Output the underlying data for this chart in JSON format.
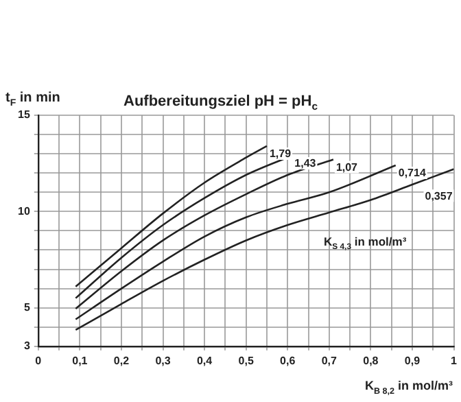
{
  "chart_data": {
    "type": "line",
    "title": "Aufbereitungsziel pH = pH$_{c}$",
    "xlabel": "K$_{B 8,2}$ in mol/m³",
    "ylabel": "t$_{F}$ in min",
    "legend_title": "K$_{S 4,3}$ in mol/m³",
    "xlim": [
      0,
      1
    ],
    "ylim": [
      3,
      15
    ],
    "xticks": [
      {
        "value": 0,
        "label": "0"
      },
      {
        "value": 0.05,
        "label": null
      },
      {
        "value": 0.1,
        "label": "0,1"
      },
      {
        "value": 0.15,
        "label": null
      },
      {
        "value": 0.2,
        "label": "0,2"
      },
      {
        "value": 0.25,
        "label": null
      },
      {
        "value": 0.3,
        "label": "0,3"
      },
      {
        "value": 0.35,
        "label": null
      },
      {
        "value": 0.4,
        "label": "0,4"
      },
      {
        "value": 0.45,
        "label": null
      },
      {
        "value": 0.5,
        "label": "0,5"
      },
      {
        "value": 0.55,
        "label": null
      },
      {
        "value": 0.6,
        "label": "0,6"
      },
      {
        "value": 0.65,
        "label": null
      },
      {
        "value": 0.7,
        "label": "0,7"
      },
      {
        "value": 0.75,
        "label": null
      },
      {
        "value": 0.8,
        "label": "0,8"
      },
      {
        "value": 0.85,
        "label": null
      },
      {
        "value": 0.9,
        "label": "0,9"
      },
      {
        "value": 0.95,
        "label": null
      },
      {
        "value": 1,
        "label": "1"
      }
    ],
    "yticks": [
      3,
      {
        "value": 4,
        "label": null
      },
      5,
      {
        "value": 6,
        "label": null
      },
      {
        "value": 7,
        "label": null
      },
      {
        "value": 8,
        "label": null
      },
      {
        "value": 9,
        "label": null
      },
      10,
      {
        "value": 11,
        "label": null
      },
      {
        "value": 12,
        "label": null
      },
      {
        "value": 13,
        "label": null
      },
      {
        "value": 14,
        "label": null
      },
      15
    ],
    "grid": true,
    "marker": "none",
    "line_style": "solid",
    "series": [
      {
        "name": "1,79",
        "color": "#222222",
        "x": [
          0.09,
          0.2,
          0.3,
          0.4,
          0.5,
          0.55
        ],
        "values": [
          6.1,
          8.1,
          9.9,
          11.5,
          12.8,
          13.4
        ]
      },
      {
        "name": "1,43",
        "color": "#222222",
        "x": [
          0.09,
          0.2,
          0.3,
          0.4,
          0.5,
          0.61
        ],
        "values": [
          5.5,
          7.6,
          9.3,
          10.7,
          11.9,
          12.9
        ]
      },
      {
        "name": "1,07",
        "color": "#222222",
        "x": [
          0.09,
          0.2,
          0.3,
          0.4,
          0.5,
          0.6,
          0.71
        ],
        "values": [
          4.95,
          6.9,
          8.5,
          9.8,
          10.9,
          11.9,
          12.7
        ]
      },
      {
        "name": "0,714",
        "color": "#222222",
        "x": [
          0.09,
          0.2,
          0.3,
          0.4,
          0.5,
          0.6,
          0.7,
          0.86
        ],
        "values": [
          4.4,
          6.0,
          7.4,
          8.7,
          9.7,
          10.4,
          11.0,
          12.4
        ]
      },
      {
        "name": "0,357",
        "color": "#222222",
        "x": [
          0.09,
          0.2,
          0.3,
          0.4,
          0.5,
          0.6,
          0.7,
          0.8,
          0.9,
          1.0
        ],
        "values": [
          3.85,
          5.2,
          6.4,
          7.5,
          8.5,
          9.3,
          9.95,
          10.6,
          11.4,
          12.2
        ]
      }
    ]
  }
}
